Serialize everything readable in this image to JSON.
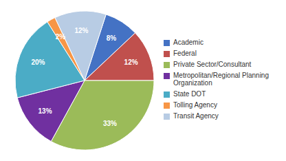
{
  "chart_data": {
    "type": "pie",
    "categories": [
      "Academic",
      "Federal",
      "Private Sector/Consultant",
      "Metropolitan/Regional Planning\nOrganization",
      "State DOT",
      "Tolling Agency",
      "Transit Agency"
    ],
    "values": [
      8,
      12,
      33,
      13,
      20,
      2,
      12
    ],
    "value_labels": [
      "8%",
      "12%",
      "33%",
      "13%",
      "20%",
      "2%",
      "12%"
    ],
    "colors": [
      "#4472C4",
      "#C0504D",
      "#9BBB59",
      "#7030A0",
      "#4BACC6",
      "#F79646",
      "#B8CCE4"
    ],
    "data_labels": true,
    "legend": "right"
  }
}
